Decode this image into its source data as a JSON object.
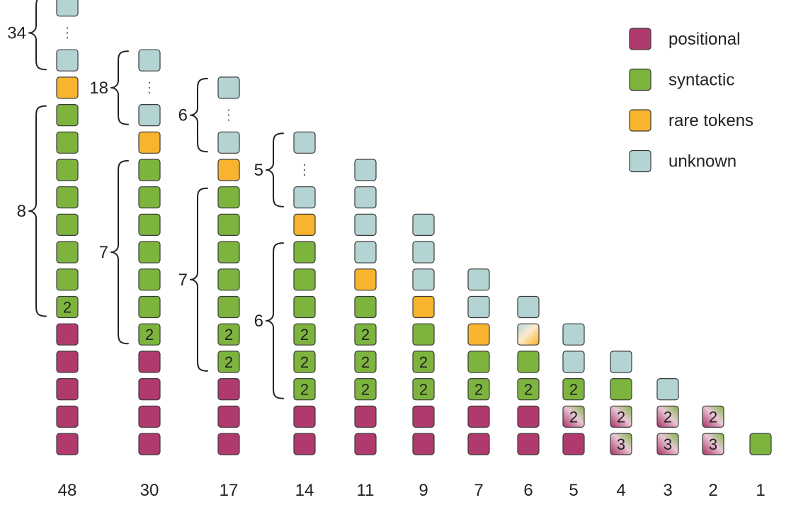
{
  "colors": {
    "positional": "#B03A6E",
    "syntactic": "#7DB43E",
    "rare_tokens": "#F8B42E",
    "unknown": "#B4D3D3",
    "outline": "#3a3a3a"
  },
  "legend": [
    {
      "type": "positional",
      "label": "positional"
    },
    {
      "type": "syntactic",
      "label": "syntactic"
    },
    {
      "type": "rare_tokens",
      "label": "rare tokens"
    },
    {
      "type": "unknown",
      "label": "unknown"
    }
  ],
  "columns": [
    {
      "label": "48",
      "stack": [
        "P",
        "P",
        "P",
        "P",
        "P",
        "S:2",
        "S",
        "S",
        "S",
        "S",
        "S",
        "S",
        "S",
        "R",
        "U",
        "E",
        "U"
      ],
      "braces": [
        {
          "label": "8",
          "from": 5,
          "to": 12
        },
        {
          "label": "34",
          "from": 14,
          "to": 16
        }
      ]
    },
    {
      "label": "30",
      "stack": [
        "P",
        "P",
        "P",
        "P",
        "S:2",
        "S",
        "S",
        "S",
        "S",
        "S",
        "S",
        "R",
        "U",
        "E",
        "U"
      ],
      "braces": [
        {
          "label": "7",
          "from": 4,
          "to": 10
        },
        {
          "label": "18",
          "from": 12,
          "to": 14
        }
      ]
    },
    {
      "label": "17",
      "stack": [
        "P",
        "P",
        "P",
        "S:2",
        "S:2",
        "S",
        "S",
        "S",
        "S",
        "S",
        "R",
        "U",
        "E",
        "U"
      ],
      "braces": [
        {
          "label": "7",
          "from": 3,
          "to": 9
        },
        {
          "label": "6",
          "from": 11,
          "to": 13
        }
      ]
    },
    {
      "label": "14",
      "stack": [
        "P",
        "P",
        "S:2",
        "S:2",
        "S:2",
        "S",
        "S",
        "S",
        "R",
        "U",
        "E",
        "U"
      ],
      "braces": [
        {
          "label": "6",
          "from": 2,
          "to": 7
        },
        {
          "label": "5",
          "from": 9,
          "to": 11
        }
      ]
    },
    {
      "label": "11",
      "stack": [
        "P",
        "P",
        "S:2",
        "S:2",
        "S:2",
        "S",
        "R",
        "U",
        "U",
        "U",
        "U"
      ],
      "braces": []
    },
    {
      "label": "9",
      "stack": [
        "P",
        "P",
        "S:2",
        "S:2",
        "S",
        "R",
        "U",
        "U",
        "U"
      ],
      "braces": []
    },
    {
      "label": "7",
      "stack": [
        "P",
        "P",
        "S:2",
        "S",
        "R",
        "U",
        "U"
      ],
      "braces": []
    },
    {
      "label": "6",
      "stack": [
        "P",
        "P",
        "S:2",
        "S",
        "RU",
        "U"
      ],
      "braces": []
    },
    {
      "label": "5",
      "stack": [
        "P",
        "PS:2",
        "S:2",
        "U",
        "U"
      ],
      "braces": []
    },
    {
      "label": "4",
      "stack": [
        "PS:3",
        "PS:2",
        "S",
        "U"
      ],
      "braces": []
    },
    {
      "label": "3",
      "stack": [
        "PS:3",
        "PS:2",
        "U"
      ],
      "braces": []
    },
    {
      "label": "2",
      "stack": [
        "PS:3",
        "PS:2"
      ],
      "braces": []
    },
    {
      "label": "1",
      "stack": [
        "S"
      ],
      "braces": []
    }
  ]
}
